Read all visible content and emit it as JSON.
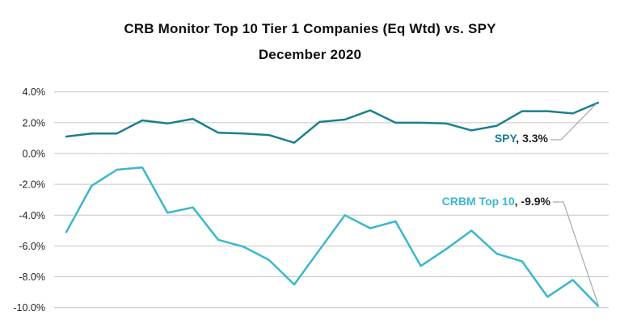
{
  "header": {
    "title": "CRB Monitor Top 10 Tier 1 Companies (Eq Wtd) vs. SPY",
    "subtitle": "December 2020"
  },
  "labels": {
    "spy_name": "SPY",
    "spy_value": ", 3.3%",
    "crbm_name": "CRBM Top 10",
    "crbm_value": ", -9.9%"
  },
  "colors": {
    "spy": "#1a7f8e",
    "crbm": "#3ab7cd",
    "gridline": "#c6c6c6",
    "axis_text": "#1f1f1f",
    "connector": "#9a9a9a",
    "title_text": "#0f0f0f",
    "background": "#ffffff"
  },
  "chart_data": {
    "type": "line",
    "title": "CRB Monitor Top 10 Tier 1 Companies (Eq Wtd) vs. SPY",
    "subtitle": "December 2020",
    "x_axis": "22 unlabeled points (December 2020 trading days)",
    "y_ticks": [
      "4.0%",
      "2.0%",
      "0.0%",
      "-2.0%",
      "-4.0%",
      "-6.0%",
      "-8.0%",
      "-10.0%"
    ],
    "y_tick_values": [
      4,
      2,
      0,
      -2,
      -4,
      -6,
      -8,
      -10
    ],
    "ylim": [
      -10.5,
      4.0
    ],
    "grid": "horizontal",
    "legend": "end-of-line labels with connector lines",
    "series": [
      {
        "name": "SPY",
        "end_label": "SPY, 3.3%",
        "final_value": "3.3%",
        "color": "#1a7f8e",
        "values": [
          1.1,
          1.3,
          1.3,
          2.15,
          1.95,
          2.25,
          1.35,
          1.3,
          1.2,
          0.7,
          2.05,
          2.2,
          2.8,
          2.0,
          2.0,
          1.95,
          1.5,
          1.8,
          2.75,
          2.75,
          2.6,
          3.3
        ]
      },
      {
        "name": "CRBM Top 10",
        "end_label": "CRBM Top 10, -9.9%",
        "final_value": "-9.9%",
        "color": "#3ab7cd",
        "values": [
          -5.1,
          -2.1,
          -1.05,
          -0.9,
          -3.85,
          -3.5,
          -5.6,
          -6.05,
          -6.9,
          -8.5,
          -6.25,
          -4.0,
          -4.85,
          -4.4,
          -7.3,
          -6.2,
          -5.0,
          -6.5,
          -7.0,
          -9.3,
          -8.2,
          -9.9
        ]
      }
    ]
  }
}
